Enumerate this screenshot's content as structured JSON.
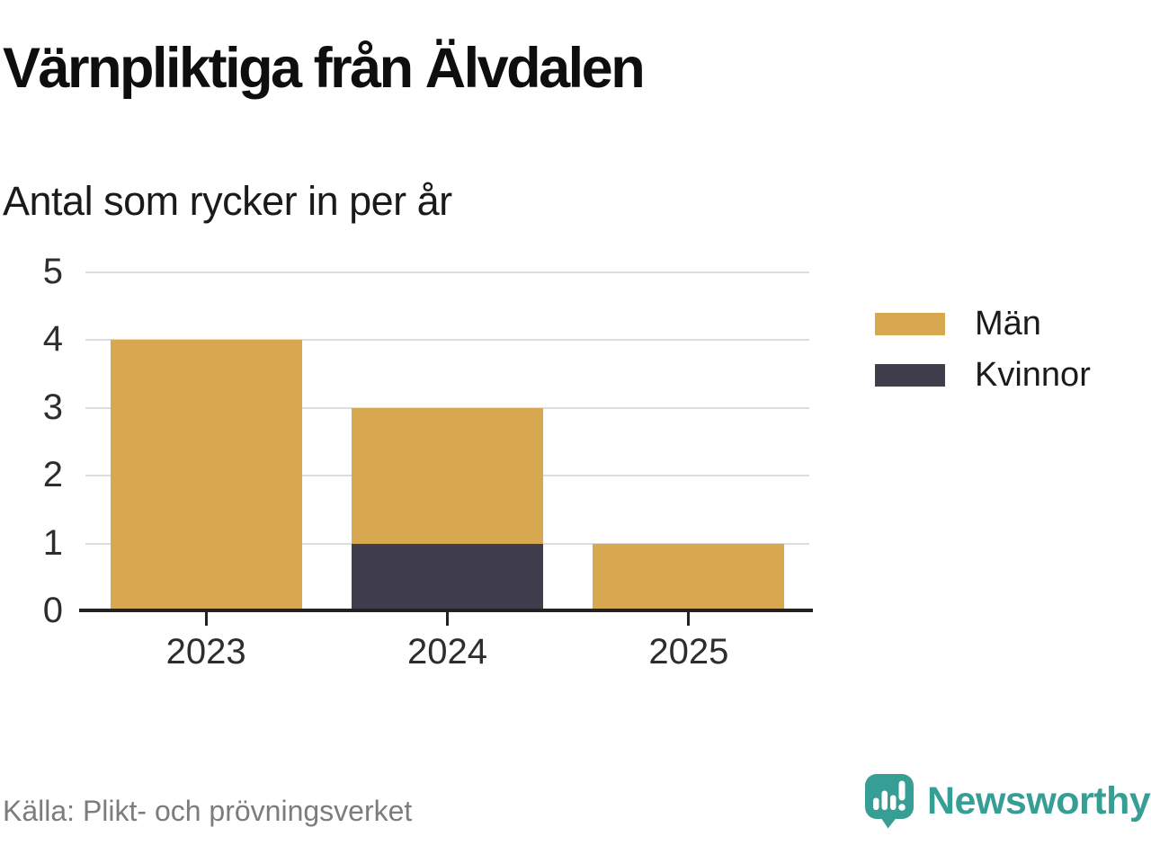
{
  "chart_data": {
    "type": "bar",
    "stacked": true,
    "title": "Värnpliktiga från Älvdalen",
    "subtitle": "Antal som rycker in per år",
    "categories": [
      "2023",
      "2024",
      "2025"
    ],
    "series": [
      {
        "name": "Män",
        "color": "#D8A851",
        "values": [
          4,
          2,
          1
        ]
      },
      {
        "name": "Kvinnor",
        "color": "#403E4D",
        "values": [
          0,
          1,
          0
        ]
      }
    ],
    "stack_order_bottom_to_top": [
      "Kvinnor",
      "Män"
    ],
    "totals": [
      4,
      3,
      1
    ],
    "xlabel": "",
    "ylabel": "",
    "ylim": [
      0,
      5
    ],
    "yticks": [
      0,
      1,
      2,
      3,
      4,
      5
    ],
    "grid": true,
    "legend_position": "right",
    "source": "Källa: Plikt- och prövningsverket"
  },
  "footer": {
    "source": "Källa: Plikt- och prövningsverket",
    "brand_name": "Newsworthy"
  },
  "colors": {
    "grid": "#DDDDDD",
    "axis": "#222222",
    "brand_teal": "#379E96",
    "bar_gold": "#D8A851",
    "bar_dark": "#403E4D"
  }
}
